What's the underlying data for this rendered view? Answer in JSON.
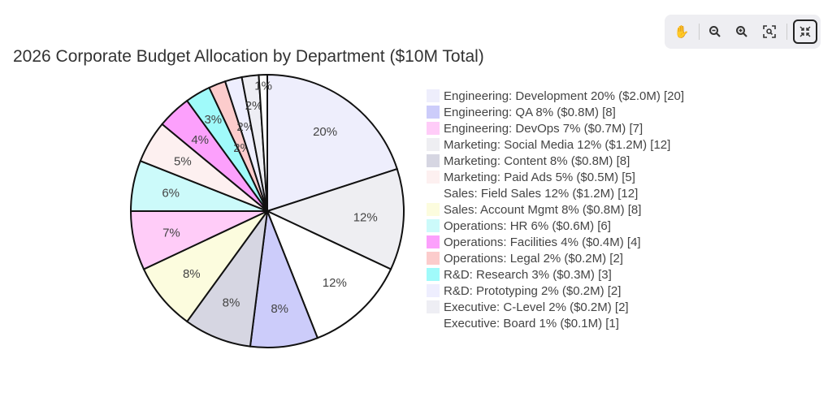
{
  "chart_data": {
    "type": "pie",
    "title": "2026 Corporate Budget Allocation by Department ($10M Total)",
    "slices": [
      {
        "label": "Engineering: Development 20% ($2.0M) [20]",
        "value": 20,
        "color": "#eeeefc"
      },
      {
        "label": "Engineering: QA 8% ($0.8M) [8]",
        "value": 8,
        "color": "#ccccfa"
      },
      {
        "label": "Engineering: DevOps 7% ($0.7M) [7]",
        "value": 7,
        "color": "#ffccf8"
      },
      {
        "label": "Marketing: Social Media 12% ($1.2M) [12]",
        "value": 12,
        "color": "#eeeef2"
      },
      {
        "label": "Marketing: Content 8% ($0.8M) [8]",
        "value": 8,
        "color": "#d6d6e2"
      },
      {
        "label": "Marketing: Paid Ads 5% ($0.5M) [5]",
        "value": 5,
        "color": "#fdf0f0"
      },
      {
        "label": "Sales: Field Sales 12% ($1.2M) [12]",
        "value": 12,
        "color": "#ffffff"
      },
      {
        "label": "Sales: Account Mgmt 8% ($0.8M) [8]",
        "value": 8,
        "color": "#fcfcde"
      },
      {
        "label": "Operations: HR 6% ($0.6M) [6]",
        "value": 6,
        "color": "#ccfafa"
      },
      {
        "label": "Operations: Facilities 4% ($0.4M) [4]",
        "value": 4,
        "color": "#fca0fc"
      },
      {
        "label": "Operations: Legal 2% ($0.2M) [2]",
        "value": 2,
        "color": "#fccccc"
      },
      {
        "label": "R&D: Research 3% ($0.3M) [3]",
        "value": 3,
        "color": "#a0fafa"
      },
      {
        "label": "R&D: Prototyping 2% ($0.2M) [2]",
        "value": 2,
        "color": "#eeeefe"
      },
      {
        "label": "Executive: C-Level 2% ($0.2M) [2]",
        "value": 2,
        "color": "#eeeef4"
      },
      {
        "label": "Executive: Board 1% ($0.1M) [1]",
        "value": 1,
        "color": "#ffffff"
      }
    ],
    "slice_order_clockwise": [
      0,
      3,
      6,
      1,
      4,
      7,
      2,
      8,
      5,
      9,
      11,
      10,
      12,
      13,
      14
    ],
    "text_info": "percent",
    "legend_position": "right"
  },
  "toolbar": {
    "tools": [
      "pan-icon",
      "zoom-out-icon",
      "zoom-in-icon",
      "zoom-fit-icon",
      "collapse-icon"
    ]
  }
}
